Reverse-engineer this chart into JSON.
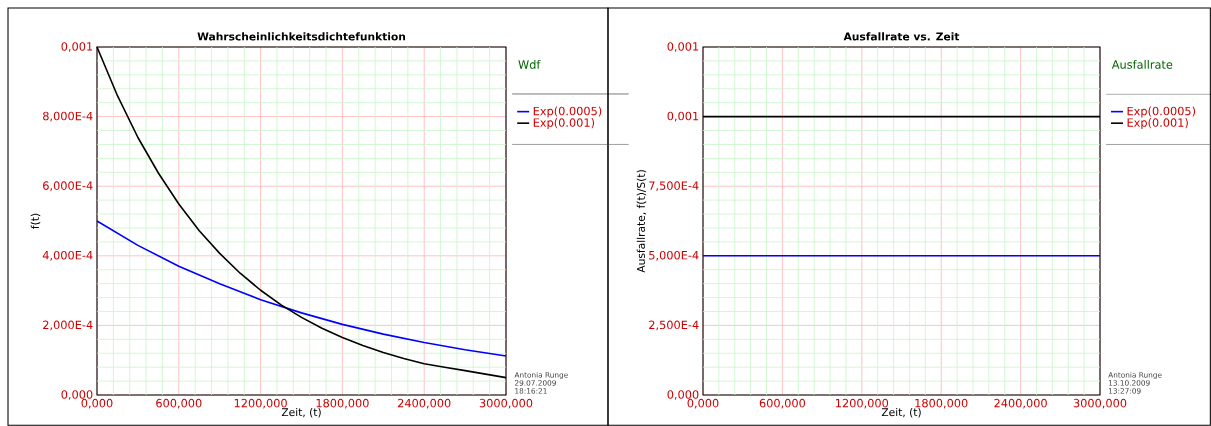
{
  "chart_data": [
    {
      "type": "line",
      "title": "Wahrscheinlichkeitsdichtefunktion",
      "xlabel": "Zeit, (t)",
      "ylabel": "f(t)",
      "legend_title": "Wdf",
      "legend": "top right",
      "grid": true,
      "xlim": [
        0,
        3000
      ],
      "xticks": [
        {
          "value": 0,
          "label": "0,000"
        },
        {
          "value": 120,
          "label": null
        },
        {
          "value": 240,
          "label": null
        },
        {
          "value": 360,
          "label": null
        },
        {
          "value": 480,
          "label": null
        },
        {
          "value": 600,
          "label": "600,000"
        },
        {
          "value": 720,
          "label": null
        },
        {
          "value": 840,
          "label": null
        },
        {
          "value": 960,
          "label": null
        },
        {
          "value": 1080,
          "label": null
        },
        {
          "value": 1200,
          "label": "1200,000"
        },
        {
          "value": 1320,
          "label": null
        },
        {
          "value": 1440,
          "label": null
        },
        {
          "value": 1560,
          "label": null
        },
        {
          "value": 1680,
          "label": null
        },
        {
          "value": 1800,
          "label": "1800,000"
        },
        {
          "value": 1920,
          "label": null
        },
        {
          "value": 2040,
          "label": null
        },
        {
          "value": 2160,
          "label": null
        },
        {
          "value": 2280,
          "label": null
        },
        {
          "value": 2400,
          "label": "2400,000"
        },
        {
          "value": 2520,
          "label": null
        },
        {
          "value": 2640,
          "label": null
        },
        {
          "value": 2760,
          "label": null
        },
        {
          "value": 2880,
          "label": null
        },
        {
          "value": 3000,
          "label": "3000,000"
        }
      ],
      "ylim": [
        0,
        0.001
      ],
      "yticks": [
        {
          "value": 0,
          "label": "0,000"
        },
        {
          "value": 4e-05,
          "label": null
        },
        {
          "value": 8e-05,
          "label": null
        },
        {
          "value": 0.00012,
          "label": null
        },
        {
          "value": 0.00016,
          "label": null
        },
        {
          "value": 0.0002,
          "label": "2,000E-4"
        },
        {
          "value": 0.00024,
          "label": null
        },
        {
          "value": 0.00028,
          "label": null
        },
        {
          "value": 0.00032,
          "label": null
        },
        {
          "value": 0.00036,
          "label": null
        },
        {
          "value": 0.0004,
          "label": "4,000E-4"
        },
        {
          "value": 0.00044,
          "label": null
        },
        {
          "value": 0.00048,
          "label": null
        },
        {
          "value": 0.00052,
          "label": null
        },
        {
          "value": 0.00056,
          "label": null
        },
        {
          "value": 0.0006,
          "label": "6,000E-4"
        },
        {
          "value": 0.00064,
          "label": null
        },
        {
          "value": 0.00068,
          "label": null
        },
        {
          "value": 0.00072,
          "label": null
        },
        {
          "value": 0.00076,
          "label": null
        },
        {
          "value": 0.0008,
          "label": "8,000E-4"
        },
        {
          "value": 0.00084,
          "label": null
        },
        {
          "value": 0.00088,
          "label": null
        },
        {
          "value": 0.00092,
          "label": null
        },
        {
          "value": 0.00096,
          "label": null
        },
        {
          "value": 0.001,
          "label": "0,001"
        }
      ],
      "series": [
        {
          "name": "Exp(0.0005)",
          "color": "#0000ff",
          "x": [
            0,
            300,
            600,
            900,
            1200,
            1500,
            1800,
            2100,
            2400,
            2700,
            3000
          ],
          "values": [
            0.0005,
            0.00043,
            0.00037,
            0.00032,
            0.000274,
            0.000236,
            0.000203,
            0.000175,
            0.000151,
            0.00013,
            0.000112
          ]
        },
        {
          "name": "Exp(0.001)",
          "color": "#000000",
          "x": [
            0,
            150,
            300,
            450,
            600,
            750,
            900,
            1050,
            1200,
            1350,
            1500,
            1650,
            1800,
            1950,
            2100,
            2250,
            2400,
            2550,
            2700,
            2850,
            3000
          ],
          "values": [
            0.001,
            0.00086,
            0.00074,
            0.000638,
            0.000549,
            0.000472,
            0.000407,
            0.00035,
            0.000301,
            0.000259,
            0.000223,
            0.000192,
            0.000165,
            0.000142,
            0.000122,
            0.000105,
            9e-05,
            8e-05,
            7e-05,
            6e-05,
            5e-05
          ]
        }
      ],
      "annotations": [
        "Antonia Runge",
        "29.07.2009",
        "18:16:21"
      ]
    },
    {
      "type": "line",
      "title": "Ausfallrate vs. Zeit",
      "xlabel": "Zeit, (t)",
      "ylabel": "Ausfallrate, f(t)/S(t)",
      "legend_title": "Ausfallrate",
      "legend": "top right",
      "grid": true,
      "xlim": [
        0,
        3000
      ],
      "xticks": [
        {
          "value": 0,
          "label": "0,000"
        },
        {
          "value": 120,
          "label": null
        },
        {
          "value": 240,
          "label": null
        },
        {
          "value": 360,
          "label": null
        },
        {
          "value": 480,
          "label": null
        },
        {
          "value": 600,
          "label": "600,000"
        },
        {
          "value": 720,
          "label": null
        },
        {
          "value": 840,
          "label": null
        },
        {
          "value": 960,
          "label": null
        },
        {
          "value": 1080,
          "label": null
        },
        {
          "value": 1200,
          "label": "1200,000"
        },
        {
          "value": 1320,
          "label": null
        },
        {
          "value": 1440,
          "label": null
        },
        {
          "value": 1560,
          "label": null
        },
        {
          "value": 1680,
          "label": null
        },
        {
          "value": 1800,
          "label": "1800,000"
        },
        {
          "value": 1920,
          "label": null
        },
        {
          "value": 2040,
          "label": null
        },
        {
          "value": 2160,
          "label": null
        },
        {
          "value": 2280,
          "label": null
        },
        {
          "value": 2400,
          "label": "2400,000"
        },
        {
          "value": 2520,
          "label": null
        },
        {
          "value": 2640,
          "label": null
        },
        {
          "value": 2760,
          "label": null
        },
        {
          "value": 2880,
          "label": null
        },
        {
          "value": 3000,
          "label": "3000,000"
        }
      ],
      "ylim": [
        0,
        0.00125
      ],
      "yticks": [
        {
          "value": 0,
          "label": "0,000"
        },
        {
          "value": 5e-05,
          "label": null
        },
        {
          "value": 0.0001,
          "label": null
        },
        {
          "value": 0.00015,
          "label": null
        },
        {
          "value": 0.0002,
          "label": null
        },
        {
          "value": 0.00025,
          "label": "2,500E-4"
        },
        {
          "value": 0.0003,
          "label": null
        },
        {
          "value": 0.00035,
          "label": null
        },
        {
          "value": 0.0004,
          "label": null
        },
        {
          "value": 0.00045,
          "label": null
        },
        {
          "value": 0.0005,
          "label": "5,000E-4"
        },
        {
          "value": 0.00055,
          "label": null
        },
        {
          "value": 0.0006,
          "label": null
        },
        {
          "value": 0.00065,
          "label": null
        },
        {
          "value": 0.0007,
          "label": null
        },
        {
          "value": 0.00075,
          "label": "7,500E-4"
        },
        {
          "value": 0.0008,
          "label": null
        },
        {
          "value": 0.00085,
          "label": null
        },
        {
          "value": 0.0009,
          "label": null
        },
        {
          "value": 0.00095,
          "label": null
        },
        {
          "value": 0.001,
          "label": "0,001"
        },
        {
          "value": 0.00105,
          "label": null
        },
        {
          "value": 0.0011,
          "label": null
        },
        {
          "value": 0.00115,
          "label": null
        },
        {
          "value": 0.0012,
          "label": null
        },
        {
          "value": 0.00125,
          "label": "0,001"
        }
      ],
      "series": [
        {
          "name": "Exp(0.0005)",
          "color": "#0000ff",
          "x": [
            0,
            3000
          ],
          "values": [
            0.0005,
            0.0005
          ]
        },
        {
          "name": "Exp(0.001)",
          "color": "#000000",
          "x": [
            0,
            3000
          ],
          "values": [
            0.001,
            0.001
          ]
        }
      ],
      "annotations": [
        "Antonia Runge",
        "13.10.2009",
        "13:27:09"
      ]
    }
  ]
}
